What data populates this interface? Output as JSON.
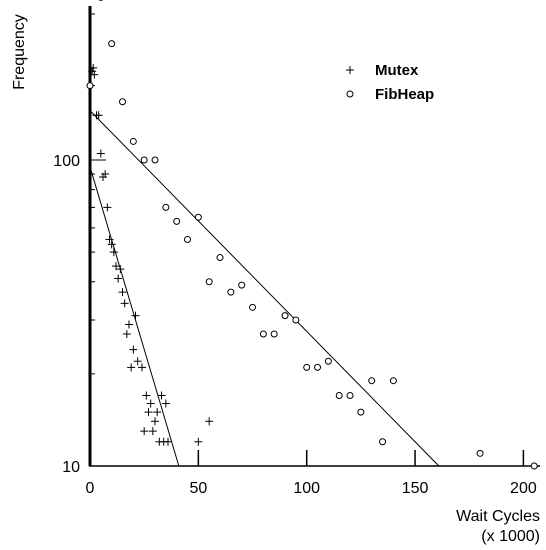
{
  "chart_data": {
    "type": "scatter",
    "title": "",
    "ylabel": "Frequency",
    "xlabel": "Wait Cycles",
    "xlabel_unit": "(x 1000)",
    "xlim": [
      0,
      210
    ],
    "ylim": [
      10,
      340
    ],
    "yscale": "log",
    "xticks": [
      0,
      50,
      100,
      150,
      200
    ],
    "xtick_labels": [
      "0",
      "50",
      "100",
      "150",
      "200"
    ],
    "yticks": [
      10,
      100
    ],
    "ytick_labels": [
      "10",
      "100"
    ],
    "legend_position": "top-right",
    "grid": false,
    "series": [
      {
        "name": "Mutex",
        "marker": "plus",
        "points": [
          [
            0.5,
            175
          ],
          [
            1,
            195
          ],
          [
            1.5,
            200
          ],
          [
            2,
            190
          ],
          [
            3,
            140
          ],
          [
            4,
            140
          ],
          [
            5,
            105
          ],
          [
            6,
            88
          ],
          [
            7,
            90
          ],
          [
            8,
            70
          ],
          [
            9,
            55
          ],
          [
            10,
            53
          ],
          [
            11,
            50
          ],
          [
            12,
            45
          ],
          [
            13,
            41
          ],
          [
            14,
            44
          ],
          [
            15,
            37
          ],
          [
            16,
            34
          ],
          [
            17,
            27
          ],
          [
            18,
            29
          ],
          [
            19,
            21
          ],
          [
            20,
            24
          ],
          [
            21,
            31
          ],
          [
            22,
            22
          ],
          [
            24,
            21
          ],
          [
            26,
            17
          ],
          [
            28,
            16
          ],
          [
            30,
            14
          ],
          [
            31,
            15
          ],
          [
            33,
            17
          ],
          [
            35,
            16
          ],
          [
            25,
            13
          ],
          [
            27,
            15
          ],
          [
            29,
            13
          ],
          [
            32,
            12
          ],
          [
            34,
            12
          ],
          [
            36,
            12
          ],
          [
            50,
            12
          ],
          [
            55,
            14
          ]
        ],
        "fit": [
          [
            0,
            95
          ],
          [
            41,
            10
          ]
        ]
      },
      {
        "name": "FibHeap",
        "marker": "circle",
        "points": [
          [
            0,
            175
          ],
          [
            5,
            340
          ],
          [
            10,
            240
          ],
          [
            15,
            155
          ],
          [
            20,
            115
          ],
          [
            25,
            100
          ],
          [
            30,
            100
          ],
          [
            35,
            70
          ],
          [
            40,
            63
          ],
          [
            45,
            55
          ],
          [
            50,
            65
          ],
          [
            55,
            40
          ],
          [
            60,
            48
          ],
          [
            65,
            37
          ],
          [
            70,
            39
          ],
          [
            75,
            33
          ],
          [
            80,
            27
          ],
          [
            85,
            27
          ],
          [
            90,
            31
          ],
          [
            95,
            30
          ],
          [
            100,
            21
          ],
          [
            105,
            21
          ],
          [
            110,
            22
          ],
          [
            115,
            17
          ],
          [
            120,
            17
          ],
          [
            125,
            15
          ],
          [
            130,
            19
          ],
          [
            135,
            12
          ],
          [
            140,
            19
          ],
          [
            180,
            11
          ],
          [
            205,
            10
          ]
        ],
        "fit": [
          [
            0,
            145
          ],
          [
            161,
            10
          ]
        ]
      }
    ]
  }
}
